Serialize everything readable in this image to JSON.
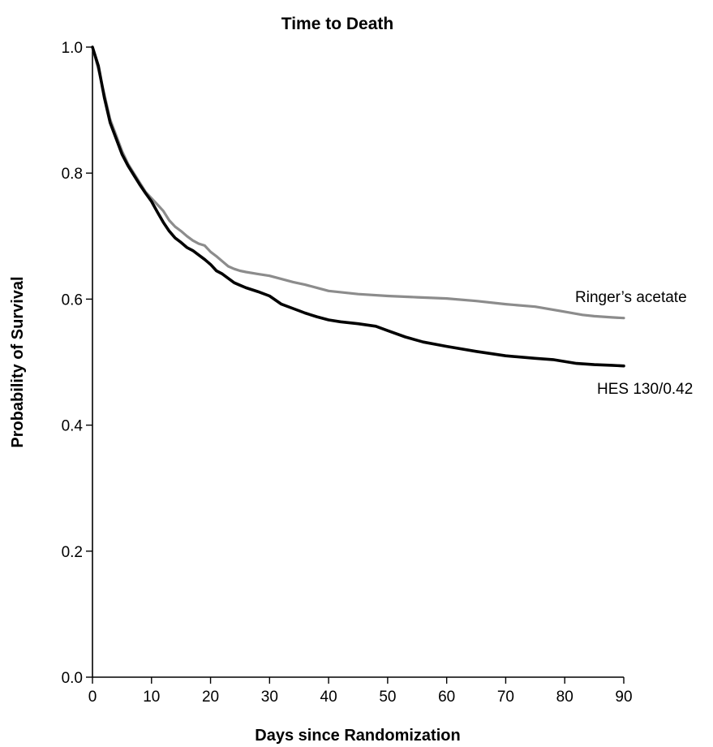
{
  "chart_data": {
    "type": "line",
    "title": "Time to Death",
    "xlabel": "Days since Randomization",
    "ylabel": "Probability of Survival",
    "xlim": [
      0,
      90
    ],
    "ylim": [
      0,
      1.0
    ],
    "x_ticks": [
      0,
      10,
      20,
      30,
      40,
      50,
      60,
      70,
      80,
      90
    ],
    "x_tick_labels": [
      "0",
      "10",
      "20",
      "30",
      "40",
      "50",
      "60",
      "70",
      "80",
      "90"
    ],
    "y_ticks": [
      0,
      0.2,
      0.4,
      0.6,
      0.8,
      1.0
    ],
    "y_tick_labels": [
      "0.0",
      "0.2",
      "0.4",
      "0.6",
      "0.8",
      "1.0"
    ],
    "grid": false,
    "legend": "inline labels at right end of lines",
    "series": [
      {
        "name": "Ringer’s acetate",
        "color": "#8c8c8c",
        "x": [
          0,
          1,
          2,
          3,
          4,
          5,
          6,
          7,
          8,
          9,
          10,
          11,
          12,
          13,
          14,
          15,
          16,
          17,
          18,
          19,
          20,
          21,
          22,
          23,
          24,
          25,
          26,
          28,
          30,
          32,
          34,
          36,
          38,
          40,
          45,
          50,
          55,
          60,
          65,
          70,
          75,
          80,
          83,
          85,
          88,
          90
        ],
        "y": [
          1.0,
          0.965,
          0.925,
          0.885,
          0.86,
          0.835,
          0.815,
          0.8,
          0.785,
          0.77,
          0.76,
          0.75,
          0.74,
          0.725,
          0.715,
          0.708,
          0.7,
          0.693,
          0.688,
          0.685,
          0.675,
          0.668,
          0.66,
          0.652,
          0.648,
          0.645,
          0.643,
          0.64,
          0.637,
          0.632,
          0.627,
          0.623,
          0.618,
          0.613,
          0.608,
          0.605,
          0.603,
          0.601,
          0.597,
          0.592,
          0.588,
          0.58,
          0.575,
          0.573,
          0.571,
          0.57
        ]
      },
      {
        "name": "HES 130/0.42",
        "color": "#000000",
        "x": [
          0,
          1,
          2,
          3,
          4,
          5,
          6,
          7,
          8,
          9,
          10,
          11,
          12,
          13,
          14,
          15,
          16,
          17,
          18,
          19,
          20,
          21,
          22,
          23,
          24,
          25,
          26,
          28,
          30,
          32,
          34,
          36,
          38,
          40,
          42,
          45,
          48,
          50,
          53,
          56,
          60,
          65,
          70,
          75,
          78,
          82,
          85,
          88,
          90
        ],
        "y": [
          1.0,
          0.97,
          0.92,
          0.88,
          0.855,
          0.83,
          0.812,
          0.797,
          0.782,
          0.768,
          0.755,
          0.738,
          0.722,
          0.708,
          0.697,
          0.69,
          0.682,
          0.677,
          0.67,
          0.663,
          0.655,
          0.645,
          0.64,
          0.633,
          0.626,
          0.622,
          0.618,
          0.612,
          0.605,
          0.592,
          0.585,
          0.578,
          0.572,
          0.567,
          0.564,
          0.561,
          0.557,
          0.55,
          0.54,
          0.532,
          0.525,
          0.517,
          0.51,
          0.506,
          0.504,
          0.498,
          0.496,
          0.495,
          0.494
        ]
      }
    ]
  }
}
